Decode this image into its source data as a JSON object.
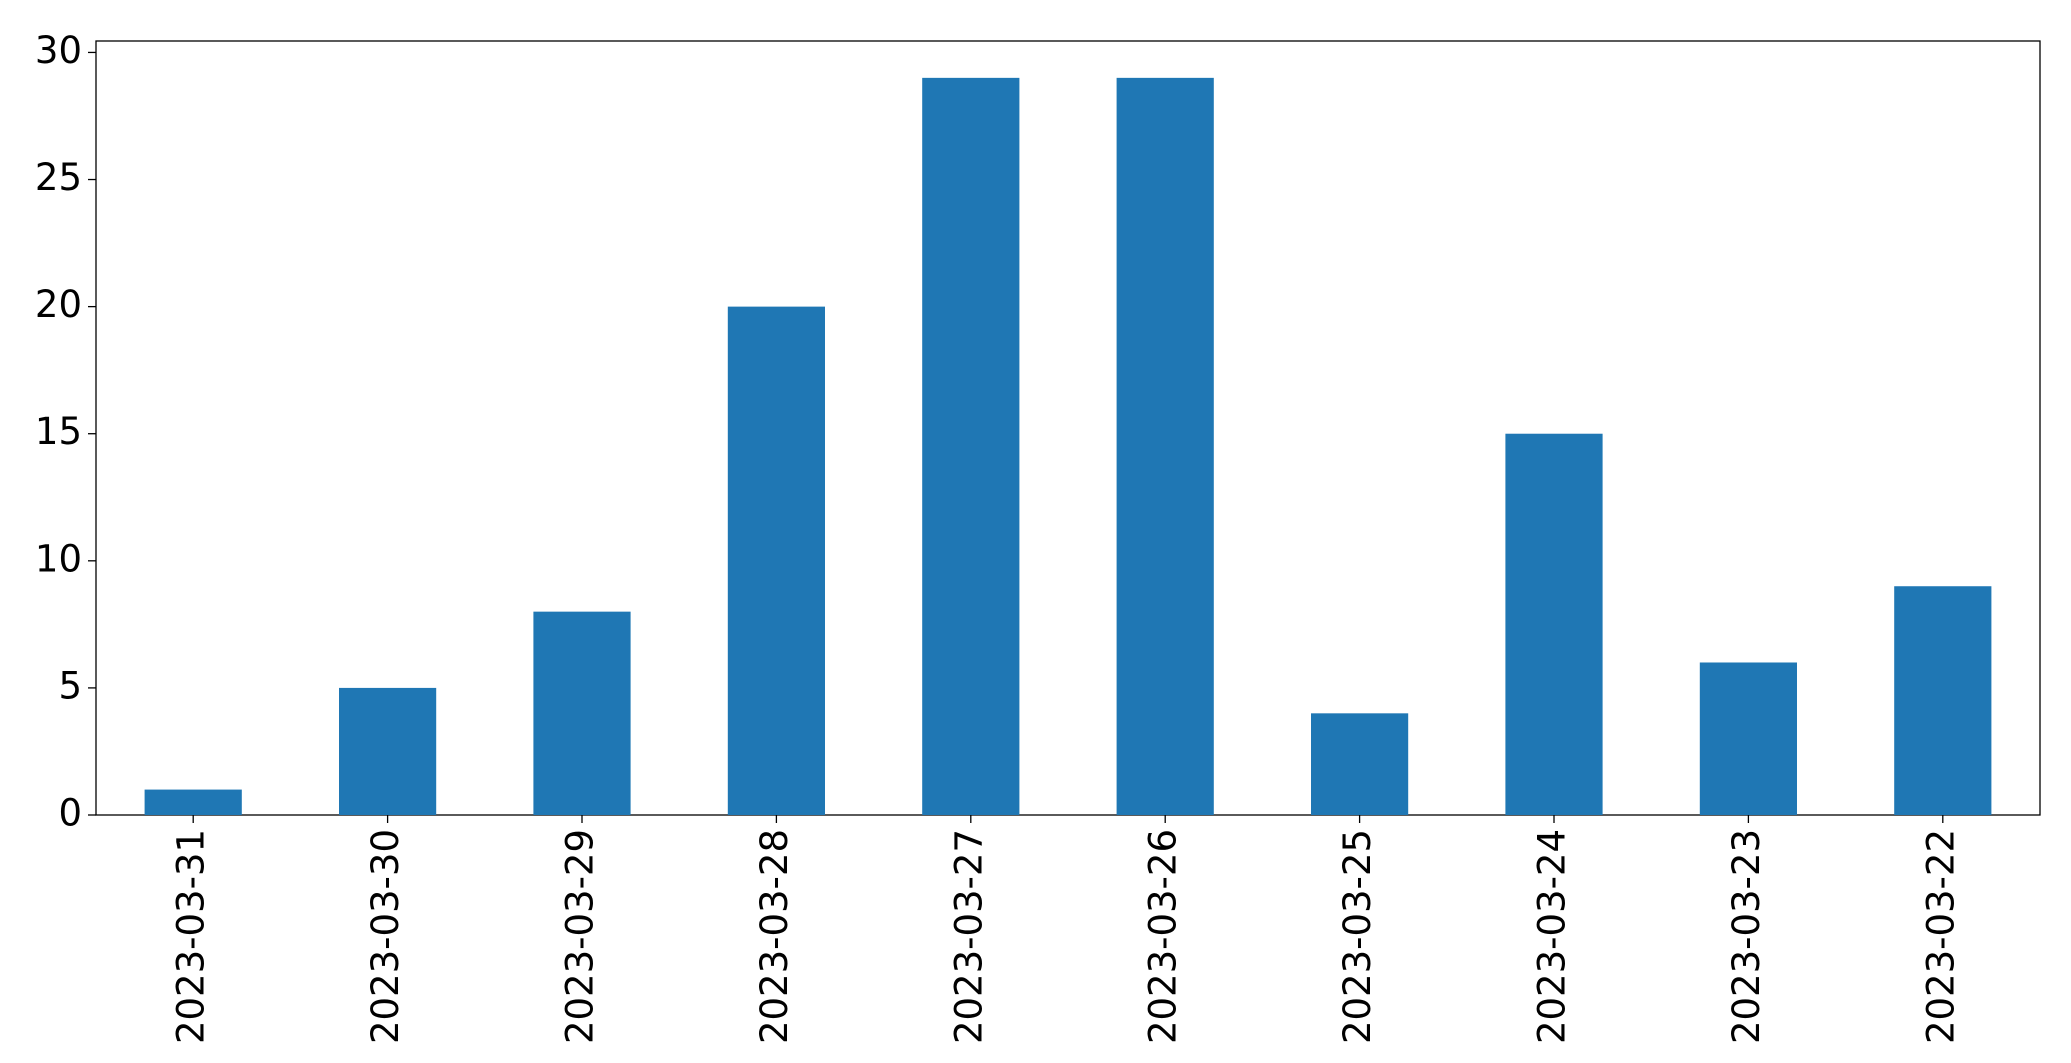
{
  "chart_data": {
    "type": "bar",
    "categories": [
      "2023-03-31",
      "2023-03-30",
      "2023-03-29",
      "2023-03-28",
      "2023-03-27",
      "2023-03-26",
      "2023-03-25",
      "2023-03-24",
      "2023-03-23",
      "2023-03-22"
    ],
    "values": [
      1,
      5,
      8,
      20,
      29,
      29,
      4,
      15,
      6,
      9
    ],
    "color": "#1f77b4",
    "ylim": [
      0,
      30.45
    ],
    "yticks": [
      0,
      5,
      10,
      15,
      20,
      25,
      30
    ],
    "grid": false
  }
}
